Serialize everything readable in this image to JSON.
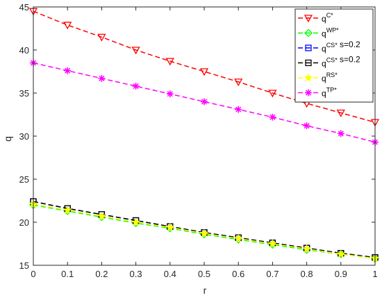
{
  "chart_data": {
    "type": "line",
    "xlabel": "r",
    "ylabel": "q",
    "xlim": [
      0,
      1
    ],
    "ylim": [
      15,
      45
    ],
    "xticks": [
      "0",
      "0.1",
      "0.2",
      "0.3",
      "0.4",
      "0.5",
      "0.6",
      "0.7",
      "0.8",
      "0.9",
      "1"
    ],
    "yticks": [
      "15",
      "20",
      "25",
      "30",
      "35",
      "40",
      "45"
    ],
    "grid": false,
    "legend_position": "top-right",
    "x": [
      0,
      0.1,
      0.2,
      0.3,
      0.4,
      0.5,
      0.6,
      0.7,
      0.8,
      0.9,
      1.0
    ],
    "series": [
      {
        "name": "q^{C*}",
        "legend_base": "q",
        "legend_sup": "C*",
        "legend_suffix": "",
        "color": "#ff0000",
        "marker": "triangle-down",
        "values": [
          44.5,
          42.9,
          41.5,
          40.0,
          38.7,
          37.5,
          36.3,
          35.0,
          33.8,
          32.7,
          31.6
        ]
      },
      {
        "name": "q^{WP*}",
        "legend_base": "q",
        "legend_sup": "WP*",
        "legend_suffix": "",
        "color": "#00ff00",
        "marker": "diamond",
        "values": [
          22.0,
          21.3,
          20.6,
          19.9,
          19.3,
          18.6,
          18.0,
          17.4,
          16.8,
          16.3,
          15.8
        ]
      },
      {
        "name": "q^{CS*} s=0.2",
        "legend_base": "q",
        "legend_sup": "CS*",
        "legend_suffix": " s=0.2",
        "color": "#0000ff",
        "marker": "square",
        "values": [
          22.4,
          21.6,
          20.9,
          20.2,
          19.5,
          18.8,
          18.2,
          17.6,
          17.0,
          16.4,
          15.9
        ]
      },
      {
        "name": "q^{CS*} s=0.2",
        "legend_base": "q",
        "legend_sup": "CS*",
        "legend_suffix": " s=0.2",
        "color": "#000000",
        "marker": "square",
        "values": [
          22.4,
          21.6,
          20.9,
          20.2,
          19.5,
          18.8,
          18.2,
          17.6,
          17.0,
          16.4,
          15.9
        ]
      },
      {
        "name": "q^{RS*}",
        "legend_base": "q",
        "legend_sup": "RS*",
        "legend_suffix": "",
        "color": "#ffff00",
        "marker": "star",
        "values": [
          22.1,
          21.4,
          20.7,
          20.0,
          19.4,
          18.7,
          18.1,
          17.5,
          16.9,
          16.3,
          15.8
        ]
      },
      {
        "name": "q^{TP*}",
        "legend_base": "q",
        "legend_sup": "TP*",
        "legend_suffix": "",
        "color": "#ff00ff",
        "marker": "asterisk",
        "values": [
          38.5,
          37.6,
          36.7,
          35.8,
          34.9,
          34.0,
          33.1,
          32.2,
          31.2,
          30.3,
          29.3
        ]
      }
    ]
  }
}
